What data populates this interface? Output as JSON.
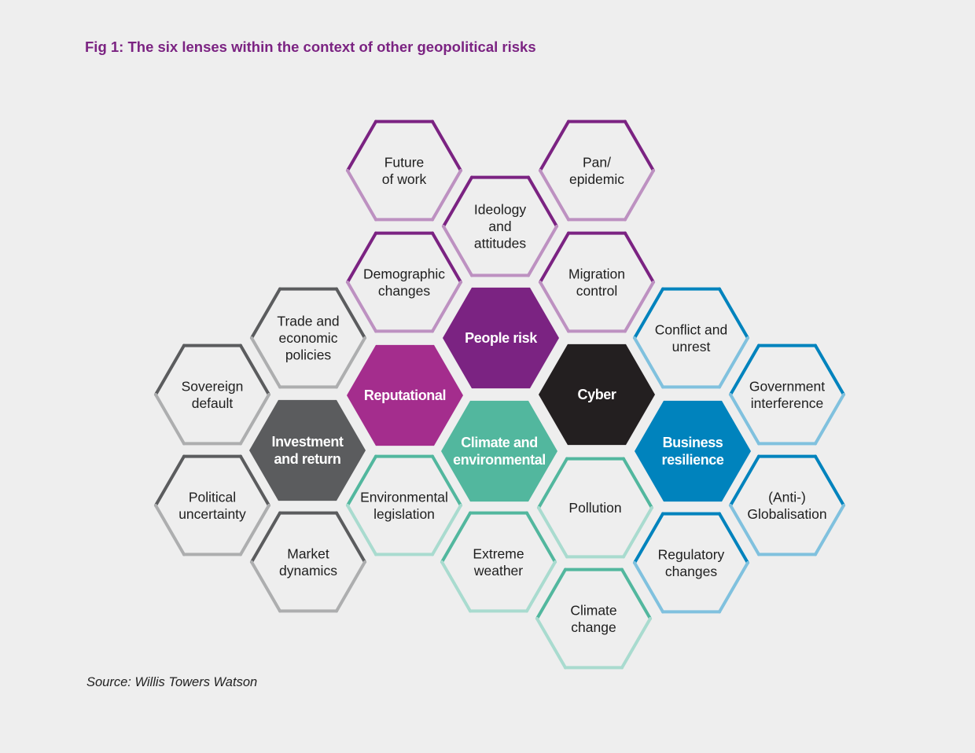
{
  "title": "Fig 1: The six lenses within the context of other geopolitical risks",
  "source": "Source: Willis Towers Watson",
  "lens_colors": {
    "people": "#7b2382",
    "reputational": "#a42d8d",
    "cyber": "#231f20",
    "climate": "#52b79e",
    "investment": "#5b5c5e",
    "business": "#0083bd"
  },
  "lenses": [
    {
      "id": "people",
      "lines": [
        "People risk"
      ]
    },
    {
      "id": "reputational",
      "lines": [
        "Reputational"
      ]
    },
    {
      "id": "cyber",
      "lines": [
        "Cyber"
      ]
    },
    {
      "id": "climate",
      "lines": [
        "Climate and",
        "environmental"
      ]
    },
    {
      "id": "investment",
      "lines": [
        "Investment",
        "and return"
      ]
    },
    {
      "id": "business",
      "lines": [
        "Business",
        "resilience"
      ]
    }
  ],
  "risks": [
    {
      "id": "future-of-work",
      "lines": [
        "Future",
        "of work"
      ],
      "lens": "people"
    },
    {
      "id": "pan-epidemic",
      "lines": [
        "Pan/",
        "epidemic"
      ],
      "lens": "people"
    },
    {
      "id": "ideology-and-attitudes",
      "lines": [
        "Ideology",
        "and",
        "attitudes"
      ],
      "lens": "people"
    },
    {
      "id": "demographic-changes",
      "lines": [
        "Demographic",
        "changes"
      ],
      "lens": "people"
    },
    {
      "id": "migration-control",
      "lines": [
        "Migration",
        "control"
      ],
      "lens": "people"
    },
    {
      "id": "trade-and-economic-policies",
      "lines": [
        "Trade and",
        "economic",
        "policies"
      ],
      "lens": "investment"
    },
    {
      "id": "sovereign-default",
      "lines": [
        "Sovereign",
        "default"
      ],
      "lens": "investment"
    },
    {
      "id": "political-uncertainty",
      "lines": [
        "Political",
        "uncertainty"
      ],
      "lens": "investment"
    },
    {
      "id": "market-dynamics",
      "lines": [
        "Market",
        "dynamics"
      ],
      "lens": "investment"
    },
    {
      "id": "environmental-legislation",
      "lines": [
        "Environmental",
        "legislation"
      ],
      "lens": "climate"
    },
    {
      "id": "extreme-weather",
      "lines": [
        "Extreme",
        "weather"
      ],
      "lens": "climate"
    },
    {
      "id": "pollution",
      "lines": [
        "Pollution"
      ],
      "lens": "climate"
    },
    {
      "id": "climate-change",
      "lines": [
        "Climate",
        "change"
      ],
      "lens": "climate"
    },
    {
      "id": "conflict-and-unrest",
      "lines": [
        "Conflict and",
        "unrest"
      ],
      "lens": "business"
    },
    {
      "id": "government-interference",
      "lines": [
        "Government",
        "interference"
      ],
      "lens": "business"
    },
    {
      "id": "anti-globalisation",
      "lines": [
        "(Anti-)",
        "Globalisation"
      ],
      "lens": "business"
    },
    {
      "id": "regulatory-changes",
      "lines": [
        "Regulatory",
        "changes"
      ],
      "lens": "business"
    }
  ]
}
